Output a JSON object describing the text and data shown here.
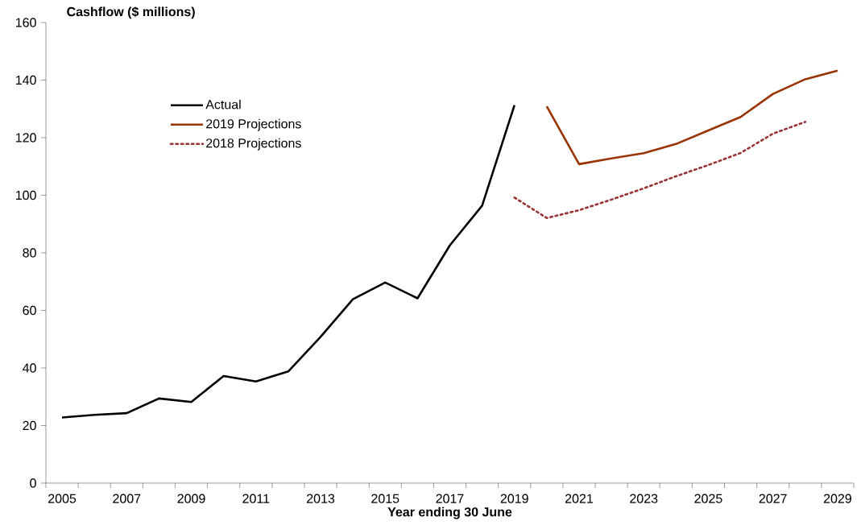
{
  "chart_data": {
    "type": "line",
    "ylabel": "Cashflow ($ millions)",
    "xlabel": "Year ending 30 June",
    "categories": [
      "2005",
      null,
      "2007",
      null,
      "2009",
      null,
      "2011",
      null,
      "2013",
      null,
      "2015",
      null,
      "2017",
      null,
      "2019",
      null,
      "2021",
      null,
      "2023",
      null,
      "2025",
      null,
      "2027",
      null,
      "2029"
    ],
    "series": [
      {
        "name": "Actual",
        "color": "#000000",
        "line_style": "solid",
        "values": [
          22.8,
          23.7,
          24.3,
          29.4,
          28.2,
          37.2,
          35.3,
          38.8,
          50.8,
          63.9,
          69.7,
          64.2,
          82.6,
          96.4,
          131.3,
          null,
          null,
          null,
          null,
          null,
          null,
          null,
          null,
          null,
          null
        ]
      },
      {
        "name": "2019 Projections",
        "color": "#993300",
        "line_style": "solid",
        "values": [
          null,
          null,
          null,
          null,
          null,
          null,
          null,
          null,
          null,
          null,
          null,
          null,
          null,
          null,
          null,
          130.9,
          110.8,
          112.8,
          114.6,
          117.8,
          122.5,
          127.2,
          135.2,
          140.3,
          143.3
        ]
      },
      {
        "name": "2018 Projections",
        "color": "#993333",
        "line_style": "dotted",
        "values": [
          null,
          null,
          null,
          null,
          null,
          null,
          null,
          null,
          null,
          null,
          null,
          null,
          null,
          null,
          99.2,
          92.1,
          94.8,
          98.5,
          102.4,
          106.6,
          110.5,
          114.7,
          121.4,
          125.5,
          null
        ]
      }
    ],
    "ylim": [
      0,
      160
    ],
    "yticks": [
      0,
      20,
      40,
      60,
      80,
      100,
      120,
      140,
      160
    ],
    "legend": "top left",
    "grid": false
  }
}
